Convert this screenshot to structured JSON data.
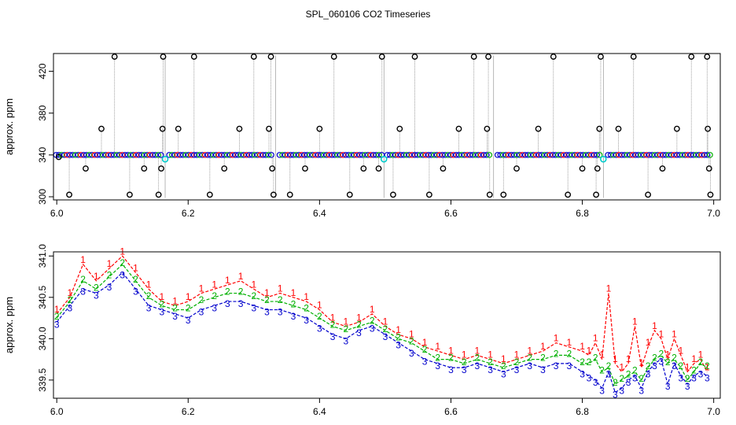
{
  "title": "SPL_060106  CO2 Timeseries",
  "colors": {
    "series1": "#ff0000",
    "series2": "#00b000",
    "series3": "#0000cc",
    "stripe": "#00cccc",
    "outlier": "#000000",
    "trace": "#888888"
  },
  "chart_data": [
    {
      "type": "scatter",
      "ylabel": "approx. ppm",
      "xlim": [
        5.995,
        7.01
      ],
      "ylim": [
        297,
        437
      ],
      "xticks": [
        "6.0",
        "6.2",
        "6.4",
        "6.6",
        "6.8",
        "7.0"
      ],
      "yticks": [
        "300",
        "340",
        "380",
        "420"
      ],
      "baseline": 340,
      "segment_breaks": [
        6.165,
        6.333,
        6.498,
        6.665,
        6.832
      ],
      "cyan_markers": [
        {
          "x": 6.165,
          "y": 336
        },
        {
          "x": 6.498,
          "y": 336
        },
        {
          "x": 6.832,
          "y": 336
        }
      ],
      "outliers": [
        {
          "x": 6.003,
          "y": 338
        },
        {
          "x": 6.019,
          "y": 302
        },
        {
          "x": 6.044,
          "y": 327
        },
        {
          "x": 6.068,
          "y": 365
        },
        {
          "x": 6.088,
          "y": 434
        },
        {
          "x": 6.111,
          "y": 302
        },
        {
          "x": 6.133,
          "y": 327
        },
        {
          "x": 6.155,
          "y": 302
        },
        {
          "x": 6.159,
          "y": 327
        },
        {
          "x": 6.161,
          "y": 365
        },
        {
          "x": 6.162,
          "y": 434
        },
        {
          "x": 6.185,
          "y": 365
        },
        {
          "x": 6.209,
          "y": 434
        },
        {
          "x": 6.233,
          "y": 302
        },
        {
          "x": 6.255,
          "y": 327
        },
        {
          "x": 6.278,
          "y": 365
        },
        {
          "x": 6.3,
          "y": 434
        },
        {
          "x": 6.323,
          "y": 365
        },
        {
          "x": 6.326,
          "y": 434
        },
        {
          "x": 6.328,
          "y": 327
        },
        {
          "x": 6.33,
          "y": 302
        },
        {
          "x": 6.355,
          "y": 302
        },
        {
          "x": 6.378,
          "y": 327
        },
        {
          "x": 6.4,
          "y": 365
        },
        {
          "x": 6.422,
          "y": 434
        },
        {
          "x": 6.446,
          "y": 302
        },
        {
          "x": 6.467,
          "y": 327
        },
        {
          "x": 6.49,
          "y": 327
        },
        {
          "x": 6.495,
          "y": 434
        },
        {
          "x": 6.512,
          "y": 302
        },
        {
          "x": 6.522,
          "y": 365
        },
        {
          "x": 6.545,
          "y": 434
        },
        {
          "x": 6.567,
          "y": 302
        },
        {
          "x": 6.588,
          "y": 327
        },
        {
          "x": 6.612,
          "y": 365
        },
        {
          "x": 6.635,
          "y": 434
        },
        {
          "x": 6.655,
          "y": 365
        },
        {
          "x": 6.657,
          "y": 434
        },
        {
          "x": 6.659,
          "y": 302
        },
        {
          "x": 6.68,
          "y": 302
        },
        {
          "x": 6.7,
          "y": 327
        },
        {
          "x": 6.733,
          "y": 365
        },
        {
          "x": 6.756,
          "y": 434
        },
        {
          "x": 6.778,
          "y": 302
        },
        {
          "x": 6.8,
          "y": 327
        },
        {
          "x": 6.821,
          "y": 302
        },
        {
          "x": 6.823,
          "y": 327
        },
        {
          "x": 6.826,
          "y": 365
        },
        {
          "x": 6.828,
          "y": 434
        },
        {
          "x": 6.855,
          "y": 365
        },
        {
          "x": 6.878,
          "y": 434
        },
        {
          "x": 6.9,
          "y": 302
        },
        {
          "x": 6.922,
          "y": 327
        },
        {
          "x": 6.944,
          "y": 365
        },
        {
          "x": 6.966,
          "y": 434
        },
        {
          "x": 6.99,
          "y": 434
        },
        {
          "x": 6.991,
          "y": 365
        },
        {
          "x": 6.993,
          "y": 327
        },
        {
          "x": 6.995,
          "y": 302
        }
      ]
    },
    {
      "type": "line",
      "ylabel": "approx. ppm",
      "xlim": [
        5.995,
        7.01
      ],
      "ylim": [
        339.28,
        341.05
      ],
      "xticks": [
        "6.0",
        "6.2",
        "6.4",
        "6.6",
        "6.8",
        "7.0"
      ],
      "yticks": [
        "339.5",
        "340.0",
        "340.5",
        "341.0"
      ],
      "x": [
        6.0,
        6.02,
        6.04,
        6.06,
        6.08,
        6.1,
        6.12,
        6.14,
        6.16,
        6.18,
        6.2,
        6.22,
        6.24,
        6.26,
        6.28,
        6.3,
        6.32,
        6.34,
        6.36,
        6.38,
        6.4,
        6.42,
        6.44,
        6.46,
        6.48,
        6.5,
        6.52,
        6.54,
        6.56,
        6.58,
        6.6,
        6.62,
        6.64,
        6.66,
        6.68,
        6.7,
        6.72,
        6.74,
        6.76,
        6.78,
        6.8,
        6.81,
        6.82,
        6.83,
        6.84,
        6.85,
        6.86,
        6.87,
        6.88,
        6.89,
        6.9,
        6.91,
        6.92,
        6.93,
        6.94,
        6.95,
        6.96,
        6.97,
        6.98,
        6.99
      ],
      "series": [
        {
          "label": "1",
          "color": "#ff0000",
          "values": [
            340.3,
            340.5,
            340.9,
            340.7,
            340.85,
            341.0,
            340.8,
            340.6,
            340.45,
            340.4,
            340.45,
            340.55,
            340.6,
            340.65,
            340.7,
            340.6,
            340.5,
            340.55,
            340.5,
            340.45,
            340.35,
            340.2,
            340.15,
            340.2,
            340.3,
            340.15,
            340.05,
            340.0,
            339.9,
            339.85,
            339.8,
            339.75,
            339.8,
            339.75,
            339.7,
            339.75,
            339.8,
            339.85,
            339.95,
            339.9,
            339.85,
            339.8,
            339.95,
            339.75,
            340.55,
            339.7,
            339.6,
            339.7,
            340.15,
            339.65,
            339.9,
            340.1,
            340.0,
            339.75,
            340.0,
            339.8,
            339.6,
            339.7,
            339.75,
            339.6
          ]
        },
        {
          "label": "2",
          "color": "#00b000",
          "values": [
            340.25,
            340.45,
            340.7,
            340.6,
            340.75,
            340.9,
            340.7,
            340.5,
            340.4,
            340.35,
            340.35,
            340.45,
            340.5,
            340.55,
            340.55,
            340.5,
            340.45,
            340.45,
            340.4,
            340.35,
            340.25,
            340.15,
            340.1,
            340.15,
            340.2,
            340.1,
            340.0,
            339.95,
            339.85,
            339.75,
            339.75,
            339.7,
            339.75,
            339.7,
            339.65,
            339.7,
            339.75,
            339.75,
            339.8,
            339.8,
            339.7,
            339.7,
            339.75,
            339.6,
            339.65,
            339.45,
            339.5,
            339.55,
            339.6,
            339.5,
            339.65,
            339.75,
            339.8,
            339.7,
            339.75,
            339.65,
            339.5,
            339.6,
            339.7,
            339.65
          ]
        },
        {
          "label": "3",
          "color": "#0000cc",
          "values": [
            340.2,
            340.4,
            340.6,
            340.55,
            340.65,
            340.8,
            340.6,
            340.4,
            340.35,
            340.3,
            340.25,
            340.35,
            340.4,
            340.45,
            340.45,
            340.4,
            340.35,
            340.35,
            340.3,
            340.25,
            340.15,
            340.05,
            340.0,
            340.1,
            340.15,
            340.05,
            339.95,
            339.85,
            339.75,
            339.7,
            339.65,
            339.65,
            339.7,
            339.65,
            339.6,
            339.65,
            339.7,
            339.65,
            339.7,
            339.7,
            339.6,
            339.55,
            339.5,
            339.4,
            339.6,
            339.35,
            339.4,
            339.5,
            339.55,
            339.4,
            339.6,
            339.7,
            339.75,
            339.45,
            339.7,
            339.55,
            339.45,
            339.55,
            339.6,
            339.55
          ]
        }
      ]
    }
  ]
}
